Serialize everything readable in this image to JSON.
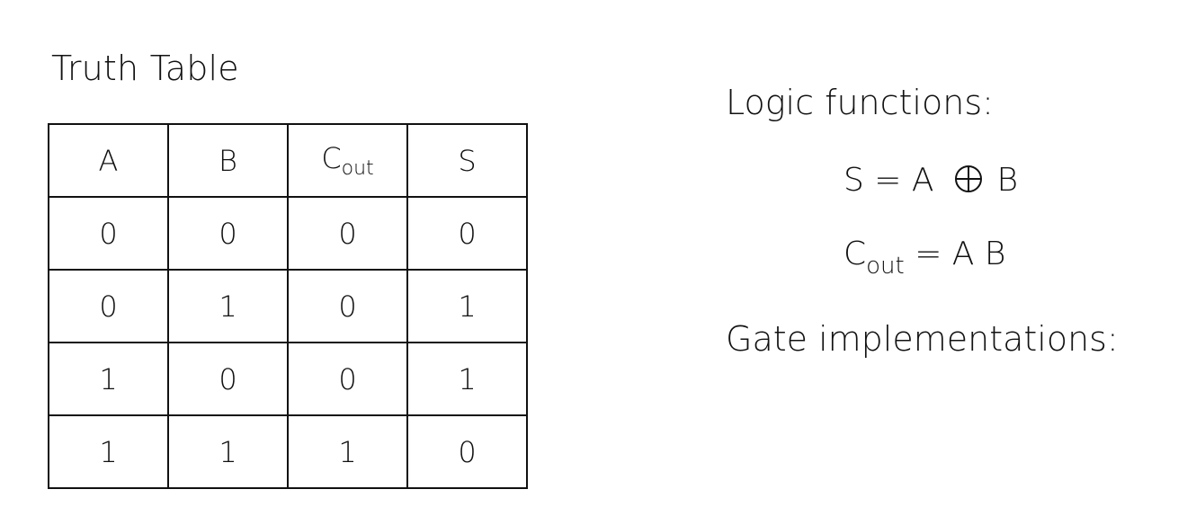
{
  "truth_table": {
    "title": "Truth Table",
    "headers": [
      {
        "main": "A",
        "sub": ""
      },
      {
        "main": "B",
        "sub": ""
      },
      {
        "main": "C",
        "sub": "out"
      },
      {
        "main": "S",
        "sub": ""
      }
    ],
    "rows": [
      [
        "0",
        "0",
        "0",
        "0"
      ],
      [
        "0",
        "1",
        "0",
        "1"
      ],
      [
        "1",
        "0",
        "0",
        "1"
      ],
      [
        "1",
        "1",
        "1",
        "0"
      ]
    ]
  },
  "logic": {
    "heading": "Logic functions:",
    "sum": {
      "lhs": "S = A",
      "rhs": "B",
      "operator_icon": "xor-circle-plus-icon"
    },
    "carry": {
      "lhs_main": "C",
      "lhs_sub": "out",
      "rhs": "= A B"
    }
  },
  "gates": {
    "heading": "Gate implementations:"
  }
}
